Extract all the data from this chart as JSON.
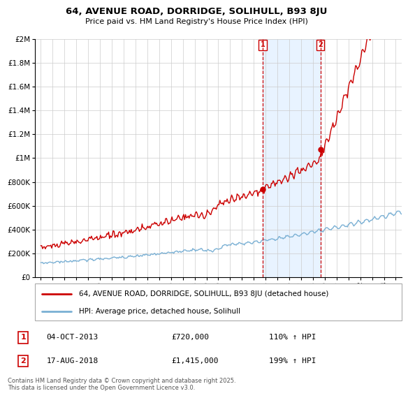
{
  "title": "64, AVENUE ROAD, DORRIDGE, SOLIHULL, B93 8JU",
  "subtitle": "Price paid vs. HM Land Registry's House Price Index (HPI)",
  "background_color": "#ffffff",
  "plot_bg_color": "#ffffff",
  "grid_color": "#cccccc",
  "red_line_color": "#cc0000",
  "blue_line_color": "#7ab0d4",
  "shade_color": "#ddeeff",
  "dashed_color": "#cc0000",
  "sale1_date_x": 2013.75,
  "sale1_price": 720000,
  "sale1_label": "1",
  "sale1_annotation": "04-OCT-2013",
  "sale1_price_str": "£720,000",
  "sale1_hpi": "110% ↑ HPI",
  "sale2_date_x": 2018.625,
  "sale2_price": 1415000,
  "sale2_label": "2",
  "sale2_annotation": "17-AUG-2018",
  "sale2_price_str": "£1,415,000",
  "sale2_hpi": "199% ↑ HPI",
  "ylim_min": 0,
  "ylim_max": 2000000,
  "xlim_min": 1994.5,
  "xlim_max": 2025.5,
  "legend_line1": "64, AVENUE ROAD, DORRIDGE, SOLIHULL, B93 8JU (detached house)",
  "legend_line2": "HPI: Average price, detached house, Solihull",
  "footer": "Contains HM Land Registry data © Crown copyright and database right 2025.\nThis data is licensed under the Open Government Licence v3.0.",
  "ytick_labels": [
    "£0",
    "£200K",
    "£400K",
    "£600K",
    "£800K",
    "£1M",
    "£1.2M",
    "£1.4M",
    "£1.6M",
    "£1.8M",
    "£2M"
  ],
  "ytick_values": [
    0,
    200000,
    400000,
    600000,
    800000,
    1000000,
    1200000,
    1400000,
    1600000,
    1800000,
    2000000
  ]
}
